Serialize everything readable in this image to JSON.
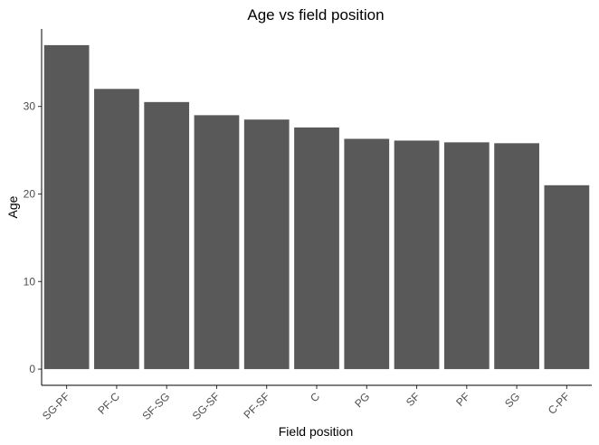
{
  "chart_data": {
    "type": "bar",
    "title": "Age vs field position",
    "xlabel": "Field position",
    "ylabel": "Age",
    "categories": [
      "SG-PF",
      "PF-C",
      "SF-SG",
      "SG-SF",
      "PF-SF",
      "C",
      "PG",
      "SF",
      "PF",
      "SG",
      "C-PF"
    ],
    "values": [
      37.0,
      32.0,
      30.5,
      29.0,
      28.5,
      27.6,
      26.3,
      26.1,
      25.9,
      25.8,
      21.0
    ],
    "yticks": [
      0,
      10,
      20,
      30
    ],
    "ylim": [
      -1.85,
      38.85
    ],
    "grid": false,
    "bar_color": "#595959",
    "axis_color": "#000000",
    "tick_label_color": "#4d4d4d"
  }
}
